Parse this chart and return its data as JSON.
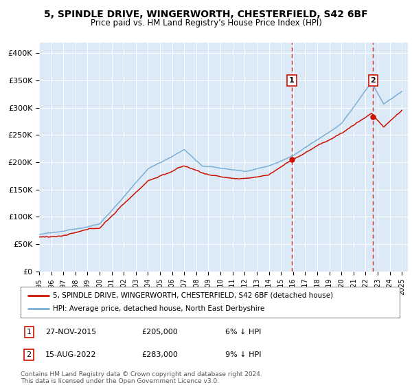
{
  "title_line1": "5, SPINDLE DRIVE, WINGERWORTH, CHESTERFIELD, S42 6BF",
  "title_line2": "Price paid vs. HM Land Registry's House Price Index (HPI)",
  "plot_bg_color": "#dce9f7",
  "hpi_color": "#7bafd4",
  "price_color": "#cc1100",
  "dashed_line_color": "#cc1100",
  "marker1_year": 2015.9,
  "marker2_year": 2022.62,
  "marker1_price": 205000,
  "marker2_price": 283000,
  "marker1_label": "27-NOV-2015",
  "marker2_label": "15-AUG-2022",
  "marker1_note": "6% ↓ HPI",
  "marker2_note": "9% ↓ HPI",
  "legend_label_price": "5, SPINDLE DRIVE, WINGERWORTH, CHESTERFIELD, S42 6BF (detached house)",
  "legend_label_hpi": "HPI: Average price, detached house, North East Derbyshire",
  "footnote_line1": "Contains HM Land Registry data © Crown copyright and database right 2024.",
  "footnote_line2": "This data is licensed under the Open Government Licence v3.0.",
  "ylim": [
    0,
    420000
  ],
  "yticks": [
    0,
    50000,
    100000,
    150000,
    200000,
    250000,
    300000,
    350000,
    400000
  ],
  "ytick_labels": [
    "£0",
    "£50K",
    "£100K",
    "£150K",
    "£200K",
    "£250K",
    "£300K",
    "£350K",
    "£400K"
  ],
  "xlim_start": 1995,
  "xlim_end": 2025.5
}
